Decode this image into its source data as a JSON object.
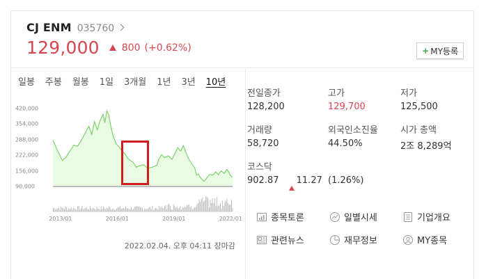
{
  "stock": {
    "name": "CJ ENM",
    "code": "035760",
    "price": "129,000",
    "change": "800",
    "change_pct": "(+0.62%)"
  },
  "my_button_label": "MY등록",
  "period_tabs": [
    "일봉",
    "주봉",
    "월봉",
    "1일",
    "3개월",
    "1년",
    "3년",
    "10년"
  ],
  "active_tab": "10년",
  "chart_data": {
    "type": "area",
    "title": "",
    "xlabel": "",
    "ylabel": "",
    "ylim": [
      90000,
      420000
    ],
    "yticks": [
      "420,000",
      "354,000",
      "288,000",
      "222,000",
      "156,000",
      "90,000"
    ],
    "xticks": [
      "2013/01",
      "2016/01",
      "2019/01",
      "2022/01"
    ],
    "x_range": [
      2012.6,
      2022.1
    ],
    "series": [
      {
        "values": [
          [
            2012.6,
            285000
          ],
          [
            2012.8,
            250000
          ],
          [
            2012.95,
            225000
          ],
          [
            2013.1,
            200000
          ],
          [
            2013.3,
            215000
          ],
          [
            2013.5,
            240000
          ],
          [
            2013.7,
            265000
          ],
          [
            2013.9,
            260000
          ],
          [
            2014.1,
            285000
          ],
          [
            2014.3,
            315000
          ],
          [
            2014.5,
            345000
          ],
          [
            2014.65,
            310000
          ],
          [
            2014.8,
            365000
          ],
          [
            2014.95,
            330000
          ],
          [
            2015.1,
            370000
          ],
          [
            2015.25,
            395000
          ],
          [
            2015.35,
            360000
          ],
          [
            2015.45,
            410000
          ],
          [
            2015.55,
            395000
          ],
          [
            2015.65,
            350000
          ],
          [
            2015.8,
            300000
          ],
          [
            2015.95,
            270000
          ],
          [
            2016.1,
            258000
          ],
          [
            2016.25,
            240000
          ],
          [
            2016.4,
            230000
          ],
          [
            2016.55,
            210000
          ],
          [
            2016.7,
            200000
          ],
          [
            2016.85,
            192000
          ],
          [
            2017.0,
            172000
          ],
          [
            2017.2,
            178000
          ],
          [
            2017.4,
            182000
          ],
          [
            2017.6,
            168000
          ],
          [
            2017.8,
            170000
          ],
          [
            2017.95,
            175000
          ],
          [
            2018.1,
            180000
          ],
          [
            2018.2,
            205000
          ],
          [
            2018.35,
            225000
          ],
          [
            2018.5,
            212000
          ],
          [
            2018.7,
            220000
          ],
          [
            2018.9,
            205000
          ],
          [
            2019.05,
            230000
          ],
          [
            2019.2,
            255000
          ],
          [
            2019.35,
            240000
          ],
          [
            2019.5,
            262000
          ],
          [
            2019.65,
            230000
          ],
          [
            2019.8,
            205000
          ],
          [
            2019.95,
            185000
          ],
          [
            2020.1,
            168000
          ],
          [
            2020.2,
            138000
          ],
          [
            2020.3,
            142000
          ],
          [
            2020.45,
            122000
          ],
          [
            2020.6,
            112000
          ],
          [
            2020.75,
            128000
          ],
          [
            2020.9,
            142000
          ],
          [
            2021.05,
            138000
          ],
          [
            2021.2,
            152000
          ],
          [
            2021.35,
            140000
          ],
          [
            2021.5,
            156000
          ],
          [
            2021.65,
            145000
          ],
          [
            2021.8,
            162000
          ],
          [
            2021.9,
            150000
          ],
          [
            2022.0,
            135000
          ],
          [
            2022.1,
            129000
          ]
        ]
      }
    ],
    "volume_bars": "shown"
  },
  "timestamp": "2022.02.04. 오후 04:11 장마감",
  "stats": {
    "prev_close": {
      "label": "전일종가",
      "value": "128,200"
    },
    "high": {
      "label": "고가",
      "value": "129,700"
    },
    "low": {
      "label": "저가",
      "value": "125,500"
    },
    "volume": {
      "label": "거래량",
      "value": "58,720"
    },
    "foreign_ratio": {
      "label": "외국인소진율",
      "value": "44.50%"
    },
    "market_cap": {
      "label": "시가 총액",
      "value": "2조 8,289억"
    },
    "kosdaq": {
      "label": "코스닥",
      "value": "902.87",
      "change": "11.27",
      "pct": "(1.26%)"
    }
  },
  "links": {
    "forum": "종목토론",
    "daily_quote": "일별시세",
    "company_overview": "기업개요",
    "related_news": "관련뉴스",
    "financials": "재무정보",
    "my_stocks": "MY종목"
  },
  "colors": {
    "up": "#d8454f",
    "chart_line": "#7bd36a",
    "chart_fill": "#e9fbe3",
    "highlight": "#d01d1d"
  }
}
